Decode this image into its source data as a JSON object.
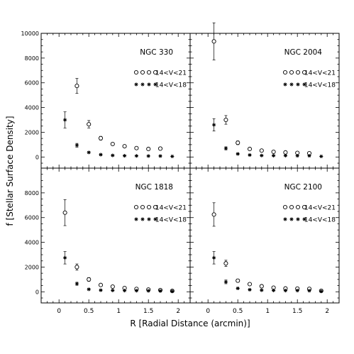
{
  "figure": {
    "xlabel": "R [Radial Distance (arcmin)]",
    "ylabel": "f [Stellar Surface Density]",
    "legend_all": "14<V<21",
    "legend_bright": "14<V<18"
  },
  "chart_data": [
    {
      "type": "scatter",
      "title": "NGC 330",
      "x": [
        0.1,
        0.3,
        0.5,
        0.7,
        0.9,
        1.1,
        1.3,
        1.5,
        1.7,
        1.9
      ],
      "xlim": [
        -0.3,
        2.2
      ],
      "ylim": [
        -900,
        10000
      ],
      "legend_position": "top-right",
      "series": [
        {
          "name": "14<V<21",
          "marker": "circle",
          "values": [
            null,
            5750,
            2650,
            1520,
            1050,
            870,
            720,
            650,
            680,
            null
          ],
          "errors": [
            null,
            600,
            300,
            150,
            100,
            90,
            80,
            70,
            70,
            null
          ]
        },
        {
          "name": "14<V<18",
          "marker": "asterisk",
          "values": [
            3000,
            950,
            370,
            190,
            130,
            100,
            90,
            80,
            80,
            50
          ],
          "errors": [
            650,
            150,
            60,
            40,
            30,
            25,
            20,
            20,
            20,
            15
          ]
        }
      ]
    },
    {
      "type": "scatter",
      "title": "NGC 2004",
      "x": [
        0.1,
        0.3,
        0.5,
        0.7,
        0.9,
        1.1,
        1.3,
        1.5,
        1.7,
        1.9
      ],
      "xlim": [
        -0.3,
        2.2
      ],
      "ylim": [
        -900,
        10000
      ],
      "legend_position": "top-right",
      "series": [
        {
          "name": "14<V<21",
          "marker": "circle",
          "values": [
            9350,
            3000,
            1150,
            650,
            520,
            420,
            370,
            330,
            300,
            null
          ],
          "errors": [
            1500,
            350,
            150,
            80,
            60,
            50,
            40,
            40,
            40,
            null
          ]
        },
        {
          "name": "14<V<18",
          "marker": "asterisk",
          "values": [
            2600,
            700,
            250,
            160,
            120,
            110,
            110,
            100,
            100,
            50
          ],
          "errors": [
            500,
            120,
            50,
            30,
            25,
            25,
            20,
            20,
            20,
            15
          ]
        }
      ]
    },
    {
      "type": "scatter",
      "title": "NGC 1818",
      "x": [
        0.1,
        0.3,
        0.5,
        0.7,
        0.9,
        1.1,
        1.3,
        1.5,
        1.7,
        1.9
      ],
      "xlim": [
        -0.3,
        2.2
      ],
      "ylim": [
        -900,
        10000
      ],
      "legend_position": "top-right",
      "series": [
        {
          "name": "14<V<21",
          "marker": "circle",
          "values": [
            6400,
            2000,
            1000,
            550,
            420,
            300,
            230,
            180,
            140,
            70
          ],
          "errors": [
            1050,
            250,
            150,
            80,
            60,
            50,
            40,
            35,
            30,
            20
          ]
        },
        {
          "name": "14<V<18",
          "marker": "asterisk",
          "values": [
            2750,
            650,
            200,
            130,
            110,
            100,
            90,
            80,
            70,
            40
          ],
          "errors": [
            500,
            120,
            50,
            30,
            25,
            20,
            20,
            20,
            20,
            15
          ]
        }
      ]
    },
    {
      "type": "scatter",
      "title": "NGC 2100",
      "x": [
        0.1,
        0.3,
        0.5,
        0.7,
        0.9,
        1.1,
        1.3,
        1.5,
        1.7,
        1.9
      ],
      "xlim": [
        -0.3,
        2.2
      ],
      "ylim": [
        -900,
        10000
      ],
      "legend_position": "top-right",
      "series": [
        {
          "name": "14<V<21",
          "marker": "circle",
          "values": [
            6250,
            2300,
            900,
            620,
            450,
            330,
            270,
            260,
            240,
            80
          ],
          "errors": [
            950,
            250,
            120,
            80,
            60,
            50,
            40,
            40,
            40,
            20
          ]
        },
        {
          "name": "14<V<18",
          "marker": "asterisk",
          "values": [
            2750,
            800,
            280,
            170,
            130,
            110,
            100,
            100,
            90,
            40
          ],
          "errors": [
            500,
            150,
            50,
            30,
            25,
            20,
            20,
            20,
            20,
            15
          ]
        }
      ]
    }
  ]
}
